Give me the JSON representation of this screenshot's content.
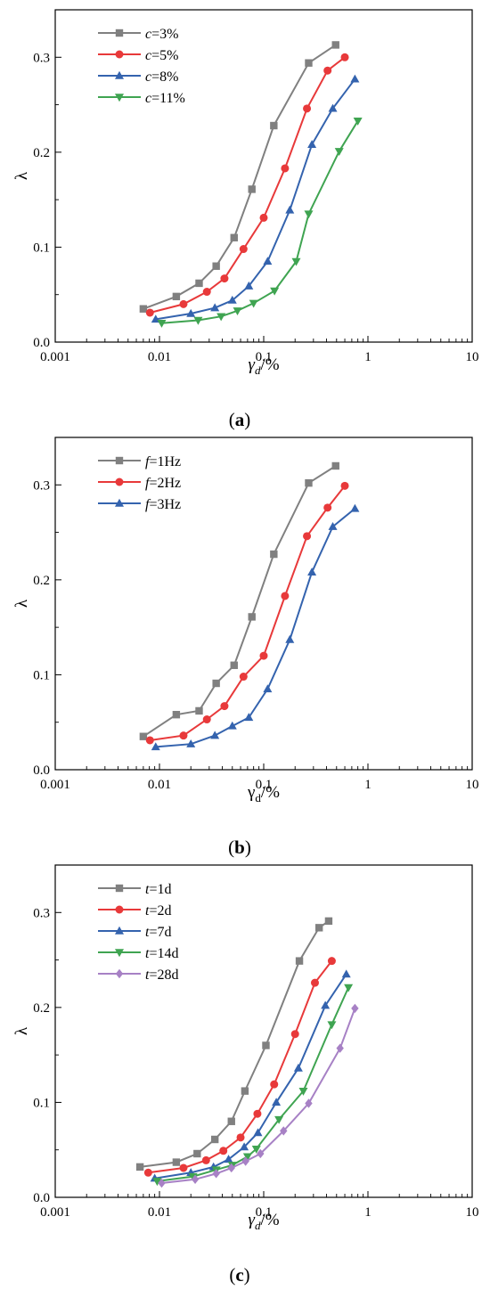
{
  "chart_data": [
    {
      "type": "line",
      "panel_label": "a",
      "xlabel": "γd/%",
      "ylabel": "λ",
      "x_scale": "log",
      "xlim": [
        0.001,
        10
      ],
      "ylim": [
        0,
        0.35
      ],
      "x_ticks": [
        "0.001",
        "0.01",
        "0.1",
        "1",
        "10"
      ],
      "y_ticks": [
        "0.0",
        "0.1",
        "0.2",
        "0.3"
      ],
      "legend_position": "top-left",
      "grid": false,
      "series": [
        {
          "var": "c",
          "name": "=3%",
          "color": "#808080",
          "marker": "square",
          "x": [
            0.007,
            0.0145,
            0.024,
            0.035,
            0.052,
            0.077,
            0.125,
            0.27,
            0.49
          ],
          "y": [
            0.035,
            0.048,
            0.062,
            0.08,
            0.11,
            0.161,
            0.228,
            0.294,
            0.313
          ]
        },
        {
          "var": "c",
          "name": "=5%",
          "color": "#e8393a",
          "marker": "circle",
          "x": [
            0.0081,
            0.017,
            0.0285,
            0.042,
            0.064,
            0.1,
            0.16,
            0.26,
            0.41,
            0.6
          ],
          "y": [
            0.031,
            0.04,
            0.053,
            0.067,
            0.098,
            0.131,
            0.183,
            0.246,
            0.286,
            0.3
          ]
        },
        {
          "var": "c",
          "name": "=8%",
          "color": "#3463ae",
          "marker": "triangle-up",
          "x": [
            0.0092,
            0.02,
            0.034,
            0.05,
            0.072,
            0.109,
            0.178,
            0.29,
            0.46,
            0.75
          ],
          "y": [
            0.024,
            0.03,
            0.036,
            0.044,
            0.059,
            0.085,
            0.139,
            0.208,
            0.246,
            0.277
          ]
        },
        {
          "var": "c",
          "name": "=11%",
          "color": "#3fa451",
          "marker": "triangle-down",
          "x": [
            0.0105,
            0.0235,
            0.039,
            0.056,
            0.08,
            0.127,
            0.205,
            0.27,
            0.53,
            0.8
          ],
          "y": [
            0.02,
            0.023,
            0.027,
            0.033,
            0.041,
            0.054,
            0.085,
            0.135,
            0.201,
            0.233
          ]
        }
      ]
    },
    {
      "type": "line",
      "panel_label": "b",
      "xlabel": "γd/%",
      "ylabel": "λ",
      "x_scale": "log",
      "xlim": [
        0.001,
        10
      ],
      "ylim": [
        0,
        0.35
      ],
      "x_ticks": [
        "0.001",
        "0.01",
        "0.1",
        "1",
        "10"
      ],
      "y_ticks": [
        "0.0",
        "0.1",
        "0.2",
        "0.3"
      ],
      "legend_position": "top-left",
      "grid": false,
      "series": [
        {
          "var": "f",
          "name": "=1Hz",
          "color": "#808080",
          "marker": "square",
          "x": [
            0.007,
            0.0145,
            0.024,
            0.035,
            0.052,
            0.077,
            0.125,
            0.27,
            0.49
          ],
          "y": [
            0.035,
            0.058,
            0.062,
            0.091,
            0.11,
            0.161,
            0.227,
            0.302,
            0.32
          ]
        },
        {
          "var": "f",
          "name": "=2Hz",
          "color": "#e8393a",
          "marker": "circle",
          "x": [
            0.0081,
            0.017,
            0.0285,
            0.042,
            0.064,
            0.1,
            0.16,
            0.26,
            0.41,
            0.6
          ],
          "y": [
            0.031,
            0.036,
            0.053,
            0.067,
            0.098,
            0.12,
            0.183,
            0.246,
            0.276,
            0.299
          ]
        },
        {
          "var": "f",
          "name": "=3Hz",
          "color": "#3463ae",
          "marker": "triangle-up",
          "x": [
            0.0092,
            0.02,
            0.034,
            0.05,
            0.072,
            0.109,
            0.178,
            0.29,
            0.46,
            0.75
          ],
          "y": [
            0.024,
            0.027,
            0.036,
            0.046,
            0.055,
            0.085,
            0.137,
            0.208,
            0.256,
            0.275
          ]
        }
      ]
    },
    {
      "type": "line",
      "panel_label": "c",
      "xlabel": "γd/%",
      "ylabel": "λ",
      "x_scale": "log",
      "xlim": [
        0.001,
        10
      ],
      "ylim": [
        0,
        0.35
      ],
      "x_ticks": [
        "0.001",
        "0.01",
        "0.1",
        "1",
        "10"
      ],
      "y_ticks": [
        "0.0",
        "0.1",
        "0.2",
        "0.3"
      ],
      "legend_position": "top-left",
      "grid": false,
      "series": [
        {
          "var": "t",
          "name": "=1d",
          "color": "#808080",
          "marker": "square",
          "x": [
            0.0065,
            0.0145,
            0.023,
            0.034,
            0.049,
            0.066,
            0.105,
            0.22,
            0.34,
            0.42
          ],
          "y": [
            0.032,
            0.037,
            0.046,
            0.061,
            0.08,
            0.112,
            0.16,
            0.249,
            0.284,
            0.291
          ]
        },
        {
          "var": "t",
          "name": "=2d",
          "color": "#e8393a",
          "marker": "circle",
          "x": [
            0.0078,
            0.017,
            0.028,
            0.041,
            0.06,
            0.087,
            0.126,
            0.2,
            0.31,
            0.45
          ],
          "y": [
            0.026,
            0.031,
            0.039,
            0.049,
            0.063,
            0.088,
            0.119,
            0.172,
            0.226,
            0.249
          ]
        },
        {
          "var": "t",
          "name": "=7d",
          "color": "#3463ae",
          "marker": "triangle-up",
          "x": [
            0.009,
            0.02,
            0.033,
            0.046,
            0.065,
            0.088,
            0.132,
            0.215,
            0.39,
            0.62
          ],
          "y": [
            0.02,
            0.026,
            0.032,
            0.04,
            0.053,
            0.068,
            0.1,
            0.136,
            0.202,
            0.235
          ]
        },
        {
          "var": "t",
          "name": "=14d",
          "color": "#3fa451",
          "marker": "triangle-down",
          "x": [
            0.0095,
            0.021,
            0.035,
            0.05,
            0.07,
            0.085,
            0.14,
            0.24,
            0.45,
            0.65
          ],
          "y": [
            0.017,
            0.022,
            0.029,
            0.034,
            0.043,
            0.051,
            0.082,
            0.112,
            0.182,
            0.221
          ]
        },
        {
          "var": "t",
          "name": "=28d",
          "color": "#a781c5",
          "marker": "diamond",
          "x": [
            0.0105,
            0.022,
            0.035,
            0.049,
            0.067,
            0.093,
            0.155,
            0.27,
            0.54,
            0.75
          ],
          "y": [
            0.015,
            0.019,
            0.025,
            0.031,
            0.038,
            0.046,
            0.07,
            0.099,
            0.157,
            0.199
          ]
        }
      ]
    }
  ]
}
